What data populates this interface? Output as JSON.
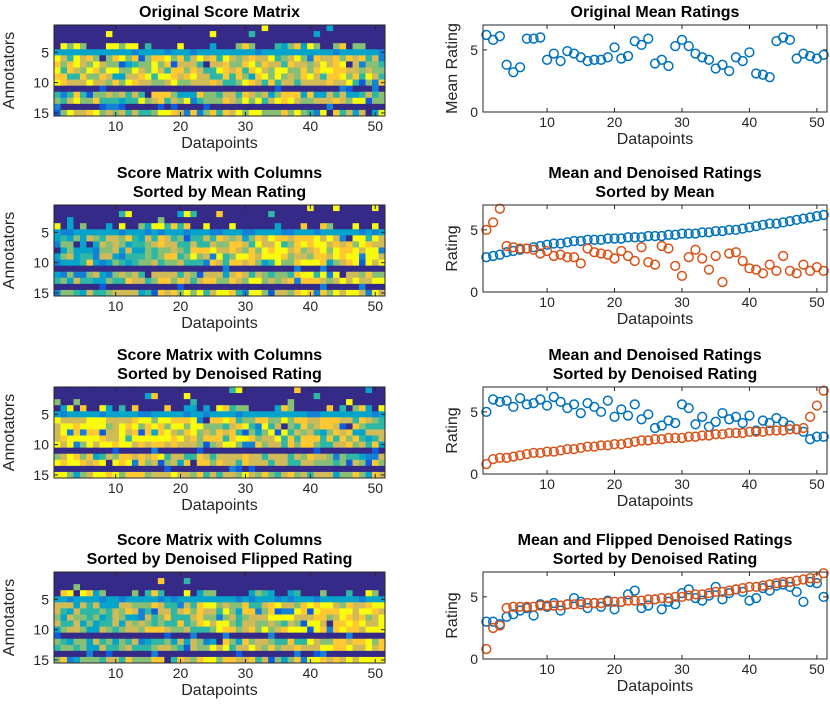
{
  "colors": {
    "mean_series": "#0072BD",
    "denoised_series": "#D95319",
    "axes": "#262626",
    "heatmap_colormap": [
      "#352A87",
      "#0F5CDD",
      "#1481D6",
      "#06A4CA",
      "#2EB7A4",
      "#87BF77",
      "#D1BB59",
      "#FEC832",
      "#F9FB0E"
    ]
  },
  "chart_data": [
    {
      "type": "heatmap",
      "title": [
        "Original Score Matrix"
      ],
      "xlabel": "Datapoints",
      "ylabel": "Annotators",
      "xticks": [
        10,
        20,
        30,
        40,
        50
      ],
      "yticks": [
        5,
        10,
        15
      ],
      "xlim": [
        0.5,
        51.5
      ],
      "ylim": [
        0.5,
        15.5
      ],
      "columns": 51,
      "rows": 15,
      "seed": 11,
      "column_order": "original"
    },
    {
      "type": "scatter",
      "title": [
        "Original Mean Ratings"
      ],
      "xlabel": "Datapoints",
      "ylabel": "Mean Rating",
      "xticks": [
        10,
        20,
        30,
        40,
        50
      ],
      "yticks": [
        0,
        5
      ],
      "xlim": [
        0.5,
        51.5
      ],
      "ylim": [
        0,
        7
      ],
      "series": [
        {
          "color": "#0072BD",
          "x": [
            1,
            2,
            3,
            4,
            5,
            6,
            7,
            8,
            9,
            10,
            11,
            12,
            13,
            14,
            15,
            16,
            17,
            18,
            19,
            20,
            21,
            22,
            23,
            24,
            25,
            26,
            27,
            28,
            29,
            30,
            31,
            32,
            33,
            34,
            35,
            36,
            37,
            38,
            39,
            40,
            41,
            42,
            43,
            44,
            45,
            46,
            47,
            48,
            49,
            50,
            51
          ],
          "values": [
            6.2,
            5.8,
            6.1,
            3.8,
            3.2,
            3.6,
            5.9,
            5.9,
            6.0,
            4.2,
            4.7,
            4.1,
            4.9,
            4.7,
            4.4,
            4.1,
            4.2,
            4.2,
            4.4,
            5.2,
            4.3,
            4.5,
            5.7,
            5.4,
            5.9,
            3.9,
            4.2,
            3.7,
            5.3,
            5.8,
            5.3,
            4.7,
            4.4,
            4.2,
            3.5,
            3.8,
            3.3,
            4.4,
            4.1,
            4.8,
            3.1,
            3.0,
            2.8,
            5.7,
            6.0,
            5.8,
            4.3,
            4.7,
            4.5,
            4.3,
            4.6
          ]
        }
      ]
    },
    {
      "type": "heatmap",
      "title": [
        "Score Matrix with Columns",
        "Sorted by Mean Rating"
      ],
      "xlabel": "Datapoints",
      "ylabel": "Annotators",
      "xticks": [
        10,
        20,
        30,
        40,
        50
      ],
      "yticks": [
        5,
        10,
        15
      ],
      "xlim": [
        0.5,
        51.5
      ],
      "ylim": [
        0.5,
        15.5
      ],
      "columns": 51,
      "rows": 15,
      "seed": 23,
      "column_order": "sorted_by_mean"
    },
    {
      "type": "scatter",
      "title": [
        "Mean and Denoised Ratings",
        "Sorted by Mean"
      ],
      "xlabel": "Datapoints",
      "ylabel": "Rating",
      "xticks": [
        10,
        20,
        30,
        40,
        50
      ],
      "yticks": [
        0,
        5
      ],
      "xlim": [
        0.5,
        51.5
      ],
      "ylim": [
        0,
        7
      ],
      "series": [
        {
          "color": "#0072BD",
          "x": [
            1,
            2,
            3,
            4,
            5,
            6,
            7,
            8,
            9,
            10,
            11,
            12,
            13,
            14,
            15,
            16,
            17,
            18,
            19,
            20,
            21,
            22,
            23,
            24,
            25,
            26,
            27,
            28,
            29,
            30,
            31,
            32,
            33,
            34,
            35,
            36,
            37,
            38,
            39,
            40,
            41,
            42,
            43,
            44,
            45,
            46,
            47,
            48,
            49,
            50,
            51
          ],
          "values": [
            2.8,
            2.9,
            3.0,
            3.2,
            3.3,
            3.4,
            3.5,
            3.6,
            3.7,
            3.8,
            3.9,
            3.9,
            4.0,
            4.1,
            4.1,
            4.2,
            4.2,
            4.2,
            4.3,
            4.3,
            4.3,
            4.4,
            4.4,
            4.4,
            4.5,
            4.5,
            4.5,
            4.6,
            4.6,
            4.7,
            4.7,
            4.7,
            4.8,
            4.8,
            4.9,
            4.9,
            5.0,
            5.0,
            5.1,
            5.2,
            5.3,
            5.4,
            5.5,
            5.5,
            5.6,
            5.7,
            5.8,
            5.9,
            6.0,
            6.1,
            6.2
          ]
        },
        {
          "color": "#D95319",
          "x": [
            1,
            2,
            3,
            4,
            5,
            6,
            7,
            8,
            9,
            10,
            11,
            12,
            13,
            14,
            15,
            16,
            17,
            18,
            19,
            20,
            21,
            22,
            23,
            24,
            25,
            26,
            27,
            28,
            29,
            30,
            31,
            32,
            33,
            34,
            35,
            36,
            37,
            38,
            39,
            40,
            41,
            42,
            43,
            44,
            45,
            46,
            47,
            48,
            49,
            50,
            51
          ],
          "values": [
            5.0,
            5.6,
            6.7,
            3.7,
            3.6,
            3.5,
            3.5,
            3.4,
            3.1,
            3.3,
            2.9,
            3.0,
            2.8,
            2.8,
            2.3,
            3.5,
            3.2,
            3.1,
            3.0,
            2.7,
            3.3,
            2.9,
            2.5,
            3.6,
            2.4,
            2.2,
            3.7,
            3.5,
            2.1,
            1.3,
            2.8,
            3.4,
            2.7,
            1.8,
            2.9,
            0.8,
            3.1,
            3.2,
            2.5,
            1.9,
            1.8,
            1.5,
            2.2,
            1.7,
            2.9,
            1.7,
            1.5,
            2.2,
            1.7,
            2.0,
            1.7
          ]
        }
      ]
    },
    {
      "type": "heatmap",
      "title": [
        "Score Matrix with Columns",
        "Sorted by Denoised Rating"
      ],
      "xlabel": "Datapoints",
      "ylabel": "Annotators",
      "xticks": [
        10,
        20,
        30,
        40,
        50
      ],
      "yticks": [
        5,
        10,
        15
      ],
      "xlim": [
        0.5,
        51.5
      ],
      "ylim": [
        0.5,
        15.5
      ],
      "columns": 51,
      "rows": 15,
      "seed": 37,
      "column_order": "sorted_by_denoised"
    },
    {
      "type": "scatter",
      "title": [
        "Mean and Denoised Ratings",
        "Sorted by Denoised Rating"
      ],
      "xlabel": "Datapoints",
      "ylabel": "Rating",
      "xticks": [
        10,
        20,
        30,
        40,
        50
      ],
      "yticks": [
        0,
        5
      ],
      "xlim": [
        0.5,
        51.5
      ],
      "ylim": [
        0,
        7
      ],
      "series": [
        {
          "color": "#0072BD",
          "x": [
            1,
            2,
            3,
            4,
            5,
            6,
            7,
            8,
            9,
            10,
            11,
            12,
            13,
            14,
            15,
            16,
            17,
            18,
            19,
            20,
            21,
            22,
            23,
            24,
            25,
            26,
            27,
            28,
            29,
            30,
            31,
            32,
            33,
            34,
            35,
            36,
            37,
            38,
            39,
            40,
            41,
            42,
            43,
            44,
            45,
            46,
            47,
            48,
            49,
            50,
            51
          ],
          "values": [
            5.0,
            6.0,
            5.8,
            5.9,
            5.4,
            6.1,
            5.6,
            5.7,
            6.0,
            5.5,
            6.2,
            5.8,
            5.3,
            5.6,
            4.9,
            5.7,
            5.4,
            5.0,
            5.9,
            4.6,
            5.2,
            4.7,
            5.6,
            4.4,
            4.8,
            3.7,
            3.9,
            4.3,
            4.1,
            5.6,
            5.3,
            4.0,
            4.6,
            3.8,
            4.2,
            4.9,
            4.4,
            4.6,
            4.1,
            4.7,
            3.5,
            4.3,
            4.1,
            4.5,
            4.2,
            3.9,
            3.6,
            3.4,
            2.8,
            3.0,
            3.0
          ]
        },
        {
          "color": "#D95319",
          "x": [
            1,
            2,
            3,
            4,
            5,
            6,
            7,
            8,
            9,
            10,
            11,
            12,
            13,
            14,
            15,
            16,
            17,
            18,
            19,
            20,
            21,
            22,
            23,
            24,
            25,
            26,
            27,
            28,
            29,
            30,
            31,
            32,
            33,
            34,
            35,
            36,
            37,
            38,
            39,
            40,
            41,
            42,
            43,
            44,
            45,
            46,
            47,
            48,
            49,
            50,
            51
          ],
          "values": [
            0.8,
            1.2,
            1.3,
            1.3,
            1.4,
            1.5,
            1.6,
            1.7,
            1.7,
            1.8,
            1.8,
            1.9,
            2.0,
            2.0,
            2.1,
            2.2,
            2.2,
            2.3,
            2.3,
            2.4,
            2.4,
            2.5,
            2.6,
            2.7,
            2.7,
            2.8,
            2.8,
            2.9,
            2.9,
            2.9,
            3.0,
            3.0,
            3.1,
            3.1,
            3.2,
            3.2,
            3.3,
            3.3,
            3.3,
            3.4,
            3.4,
            3.4,
            3.5,
            3.5,
            3.5,
            3.6,
            3.6,
            3.7,
            4.6,
            5.5,
            6.7
          ]
        }
      ]
    },
    {
      "type": "heatmap",
      "title": [
        "Score Matrix with Columns",
        "Sorted by Denoised Flipped Rating"
      ],
      "xlabel": "Datapoints",
      "ylabel": "Annotators",
      "xticks": [
        10,
        20,
        30,
        40,
        50
      ],
      "yticks": [
        5,
        10,
        15
      ],
      "xlim": [
        0.5,
        51.5
      ],
      "ylim": [
        0.5,
        15.5
      ],
      "columns": 51,
      "rows": 15,
      "seed": 53,
      "column_order": "sorted_by_flipped"
    },
    {
      "type": "scatter",
      "title": [
        "Mean and Flipped Denoised Ratings",
        "Sorted by Denoised Rating"
      ],
      "xlabel": "Datapoints",
      "ylabel": "Rating",
      "xticks": [
        10,
        20,
        30,
        40,
        50
      ],
      "yticks": [
        0,
        5
      ],
      "xlim": [
        0.5,
        51.5
      ],
      "ylim": [
        0,
        7
      ],
      "series": [
        {
          "color": "#0072BD",
          "x": [
            1,
            2,
            3,
            4,
            5,
            6,
            7,
            8,
            9,
            10,
            11,
            12,
            13,
            14,
            15,
            16,
            17,
            18,
            19,
            20,
            21,
            22,
            23,
            24,
            25,
            26,
            27,
            28,
            29,
            30,
            31,
            32,
            33,
            34,
            35,
            36,
            37,
            38,
            39,
            40,
            41,
            42,
            43,
            44,
            45,
            46,
            47,
            48,
            49,
            50,
            51
          ],
          "values": [
            3.0,
            3.0,
            2.8,
            3.4,
            3.6,
            3.9,
            4.1,
            3.5,
            4.4,
            4.2,
            4.5,
            3.9,
            4.4,
            4.9,
            4.6,
            4.1,
            4.5,
            4.2,
            4.7,
            4.0,
            4.6,
            5.2,
            5.5,
            4.1,
            4.3,
            4.8,
            4.0,
            4.6,
            4.4,
            5.3,
            5.6,
            4.9,
            4.7,
            5.1,
            5.8,
            4.8,
            5.3,
            5.6,
            5.4,
            4.7,
            4.9,
            5.7,
            5.5,
            5.9,
            6.0,
            5.8,
            5.4,
            4.6,
            6.2,
            6.1,
            5.0
          ]
        },
        {
          "color": "#D95319",
          "x": [
            1,
            2,
            3,
            4,
            5,
            6,
            7,
            8,
            9,
            10,
            11,
            12,
            13,
            14,
            15,
            16,
            17,
            18,
            19,
            20,
            21,
            22,
            23,
            24,
            25,
            26,
            27,
            28,
            29,
            30,
            31,
            32,
            33,
            34,
            35,
            36,
            37,
            38,
            39,
            40,
            41,
            42,
            43,
            44,
            45,
            46,
            47,
            48,
            49,
            50,
            51
          ],
          "values": [
            0.8,
            2.5,
            2.7,
            4.1,
            4.2,
            4.2,
            4.2,
            4.2,
            4.3,
            4.3,
            4.3,
            4.3,
            4.4,
            4.4,
            4.4,
            4.5,
            4.5,
            4.5,
            4.6,
            4.6,
            4.6,
            4.7,
            4.7,
            4.7,
            4.8,
            4.8,
            4.9,
            4.9,
            5.0,
            5.0,
            5.1,
            5.2,
            5.2,
            5.3,
            5.4,
            5.4,
            5.5,
            5.6,
            5.7,
            5.8,
            5.8,
            5.9,
            6.0,
            6.1,
            6.2,
            6.2,
            6.3,
            6.4,
            6.5,
            6.5,
            6.9
          ]
        }
      ]
    }
  ]
}
